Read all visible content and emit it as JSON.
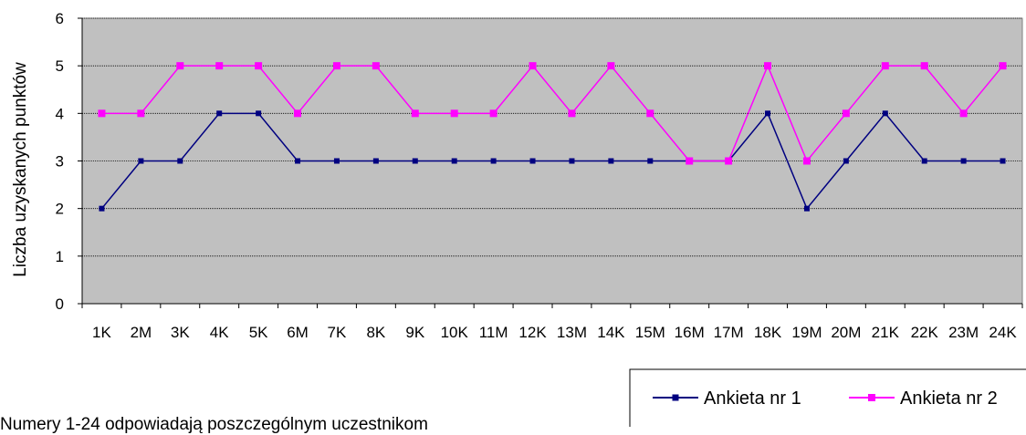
{
  "chart_data": {
    "type": "line",
    "categories": [
      "1K",
      "2M",
      "3K",
      "4K",
      "5K",
      "6M",
      "7K",
      "8K",
      "9K",
      "10K",
      "11M",
      "12K",
      "13M",
      "14K",
      "15M",
      "16M",
      "17M",
      "18K",
      "19M",
      "20M",
      "21K",
      "22K",
      "23M",
      "24K"
    ],
    "series": [
      {
        "name": "Ankieta nr 1",
        "color": "#000080",
        "marker": "square",
        "values": [
          2,
          3,
          3,
          4,
          4,
          3,
          3,
          3,
          3,
          3,
          3,
          3,
          3,
          3,
          3,
          3,
          3,
          4,
          2,
          3,
          4,
          3,
          3,
          3
        ]
      },
      {
        "name": "Ankieta nr 2",
        "color": "#ff00ff",
        "marker": "square",
        "values": [
          4,
          4,
          5,
          5,
          5,
          4,
          5,
          5,
          4,
          4,
          4,
          5,
          4,
          5,
          4,
          3,
          3,
          5,
          3,
          4,
          5,
          5,
          4,
          5
        ]
      }
    ],
    "ylabel": "Liczba uzyskanych punktów",
    "xlabel": "",
    "ylim": [
      0,
      6
    ],
    "yticks": [
      "0",
      "1",
      "2",
      "3",
      "4",
      "5",
      "6"
    ],
    "grid": true,
    "plot_background": "#c0c0c0",
    "legend_position": "bottom-right"
  },
  "note": "Numery 1-24 odpowiadają poszczególnym uczestnikom"
}
